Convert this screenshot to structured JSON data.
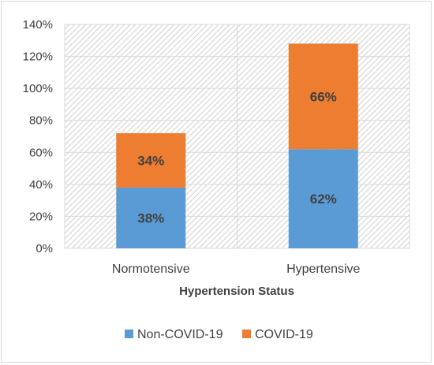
{
  "chart_data": {
    "type": "bar",
    "stacked": true,
    "categories": [
      "Normotensive",
      "Hypertensive"
    ],
    "series": [
      {
        "name": "Non-COVID-19",
        "values": [
          38,
          62
        ],
        "labels": [
          "38%",
          "62%"
        ],
        "color": "#5b9bd5"
      },
      {
        "name": "COVID-19",
        "values": [
          34,
          66
        ],
        "labels": [
          "34%",
          "66%"
        ],
        "color": "#ed7d31"
      }
    ],
    "title": "",
    "xlabel": "Hypertension Status",
    "ylabel": "",
    "ylim": [
      0,
      140
    ],
    "yticks": [
      0,
      20,
      40,
      60,
      80,
      100,
      120,
      140
    ],
    "ytick_labels": [
      "0%",
      "20%",
      "40%",
      "60%",
      "80%",
      "100%",
      "120%",
      "140%"
    ],
    "grid": true,
    "plot_background": "diagonal-hatch",
    "legend_position": "bottom"
  }
}
